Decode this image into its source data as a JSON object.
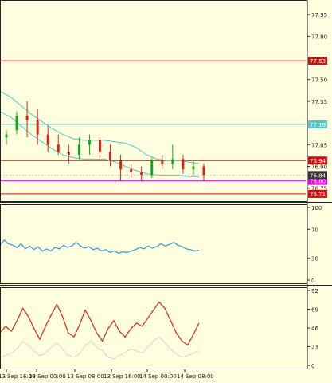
{
  "chart_data": [
    {
      "type": "candlestick",
      "title": "",
      "y_axis": {
        "ylim": [
          76.66,
          78.05
        ],
        "tick_labels": [
          "77.95",
          "77.80",
          "77.63",
          "77.50",
          "77.35",
          "77.19",
          "77.05",
          "76.94",
          "76.90",
          "76.84",
          "76.80",
          "76.75",
          "76.71"
        ],
        "tick_values": [
          77.95,
          77.8,
          77.63,
          77.5,
          77.35,
          77.19,
          77.05,
          76.94,
          76.9,
          76.84,
          76.8,
          76.75,
          76.71
        ]
      },
      "x_axis": {
        "tick_labels": [
          "13 Sep 16:00",
          "13 Sep 00:00",
          "13 Sep 08:00",
          "13 Sep 16:00",
          "14 Sep 00:00",
          "14 Sep 08:00"
        ]
      },
      "horizontal_levels": [
        {
          "value": 77.63,
          "label": "77.63",
          "color": "#cc1111"
        },
        {
          "value": 77.19,
          "label": "77.19",
          "color": "#4fc8c8"
        },
        {
          "value": 76.94,
          "label": "76.94",
          "color": "#cc1111"
        },
        {
          "value": 76.8,
          "label": "76.80",
          "color": "#ee00ee"
        },
        {
          "value": 76.71,
          "label": "76.71",
          "color": "#cc1111"
        }
      ],
      "current_price": {
        "value": 76.84,
        "label": "76.84"
      },
      "band_upper": [
        77.42,
        77.38,
        77.32,
        77.26,
        77.21,
        77.16,
        77.12,
        77.09,
        77.08,
        77.08,
        77.08,
        77.07,
        77.06,
        77.03,
        76.98,
        76.95,
        76.94,
        76.94,
        76.93,
        76.92
      ],
      "band_lower": [
        77.28,
        77.24,
        77.18,
        77.12,
        77.07,
        77.02,
        76.98,
        76.96,
        76.95,
        76.95,
        76.95,
        76.93,
        76.9,
        76.87,
        76.85,
        76.84,
        76.84,
        76.84,
        76.83,
        76.83
      ],
      "candles": [
        [
          77.1,
          77.15,
          77.05,
          77.12
        ],
        [
          77.15,
          77.28,
          77.12,
          77.25
        ],
        [
          77.25,
          77.35,
          77.1,
          77.22
        ],
        [
          77.22,
          77.3,
          77.05,
          77.12
        ],
        [
          77.12,
          77.18,
          77.0,
          77.05
        ],
        [
          77.05,
          77.12,
          76.98,
          77.0
        ],
        [
          77.0,
          77.05,
          76.92,
          76.98
        ],
        [
          76.98,
          77.1,
          76.95,
          77.05
        ],
        [
          77.05,
          77.12,
          76.98,
          77.08
        ],
        [
          77.08,
          77.1,
          76.96,
          77.0
        ],
        [
          77.0,
          77.05,
          76.9,
          76.94
        ],
        [
          76.94,
          76.98,
          76.8,
          76.88
        ],
        [
          76.88,
          76.92,
          76.82,
          76.86
        ],
        [
          76.86,
          76.9,
          76.8,
          76.84
        ],
        [
          76.84,
          76.96,
          76.82,
          76.94
        ],
        [
          76.94,
          76.98,
          76.88,
          76.92
        ],
        [
          76.92,
          77.05,
          76.88,
          76.95
        ],
        [
          76.95,
          76.98,
          76.85,
          76.88
        ],
        [
          76.88,
          76.94,
          76.84,
          76.9
        ],
        [
          76.9,
          76.92,
          76.8,
          76.84
        ]
      ]
    },
    {
      "type": "line",
      "title": "",
      "ylim": [
        0,
        100
      ],
      "tick_labels": [
        "100",
        "70",
        "30",
        "0"
      ],
      "tick_values": [
        100,
        70,
        30,
        0
      ],
      "series": [
        {
          "color": "#3399dd",
          "values": [
            48,
            55,
            50,
            48,
            45,
            50,
            43,
            47,
            42,
            46,
            40,
            43,
            40,
            45,
            43,
            48,
            45,
            47,
            52,
            47,
            44,
            46,
            42,
            44,
            40,
            42,
            38,
            40,
            37,
            39,
            38,
            40,
            42,
            45,
            43,
            47,
            44,
            46,
            50,
            47,
            49,
            52,
            48,
            46,
            43,
            42,
            40,
            41
          ]
        }
      ]
    },
    {
      "type": "line",
      "title": "",
      "ylim": [
        0,
        92
      ],
      "tick_labels": [
        "92",
        "69",
        "46",
        "23",
        "0"
      ],
      "tick_values": [
        92,
        69,
        46,
        23,
        0
      ],
      "series": [
        {
          "color": "#dd2211",
          "values": [
            40,
            48,
            42,
            55,
            70,
            60,
            45,
            32,
            48,
            62,
            75,
            60,
            40,
            35,
            50,
            68,
            55,
            40,
            30,
            45,
            55,
            42,
            35,
            45,
            52,
            48,
            58,
            68,
            78,
            70,
            55,
            40,
            30,
            25,
            38,
            52
          ]
        },
        {
          "color": "#cccccc",
          "values": [
            10,
            12,
            15,
            20,
            30,
            25,
            18,
            12,
            15,
            22,
            28,
            20,
            12,
            10,
            14,
            25,
            30,
            22,
            18,
            10,
            8,
            12,
            16,
            20,
            18,
            15,
            22,
            30,
            35,
            28,
            20,
            14,
            10,
            12,
            15,
            18
          ]
        }
      ]
    }
  ]
}
